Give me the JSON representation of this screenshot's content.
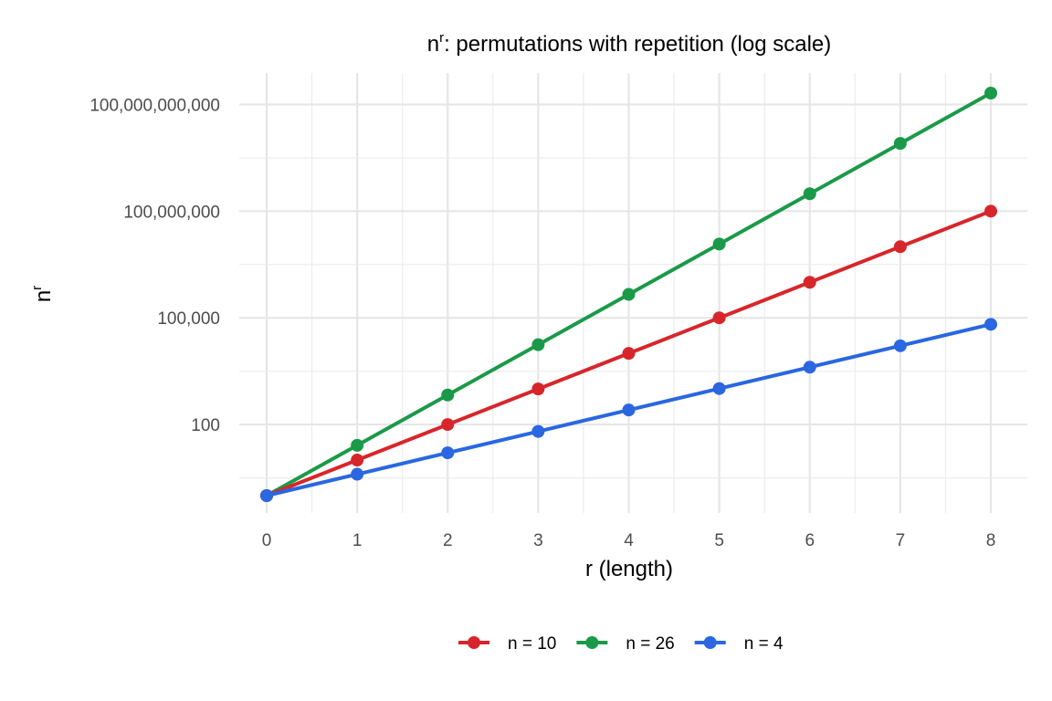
{
  "chart_data": {
    "type": "line",
    "title": {
      "base": "n",
      "sup": "r",
      "rest": ": permutations with repetition (log scale)"
    },
    "xlabel": "r (length)",
    "ylabel": {
      "base": "n",
      "sup": "r"
    },
    "x": [
      0,
      1,
      2,
      3,
      4,
      5,
      6,
      7,
      8
    ],
    "x_ticks": [
      "0",
      "1",
      "2",
      "3",
      "4",
      "5",
      "6",
      "7",
      "8"
    ],
    "xlim": [
      0,
      8
    ],
    "y_scale": "log10",
    "ylim": [
      1,
      208827064576
    ],
    "y_ticks": [
      {
        "value": 100,
        "label": "100"
      },
      {
        "value": 100000,
        "label": "100,000"
      },
      {
        "value": 100000000,
        "label": "100,000,000"
      },
      {
        "value": 100000000000,
        "label": "100,000,000,000"
      }
    ],
    "grid": true,
    "legend_position": "bottom",
    "series": [
      {
        "name": "n = 10",
        "color": "#d7262b",
        "values": [
          1,
          10,
          100,
          1000,
          10000,
          100000,
          1000000,
          10000000,
          100000000
        ]
      },
      {
        "name": "n = 26",
        "color": "#1a9a48",
        "values": [
          1,
          26,
          676,
          17576,
          456976,
          11881376,
          308915776,
          8031810176,
          208827064576
        ]
      },
      {
        "name": "n = 4",
        "color": "#2a67e0",
        "values": [
          1,
          4,
          16,
          64,
          256,
          1024,
          4096,
          16384,
          65536
        ]
      }
    ]
  }
}
